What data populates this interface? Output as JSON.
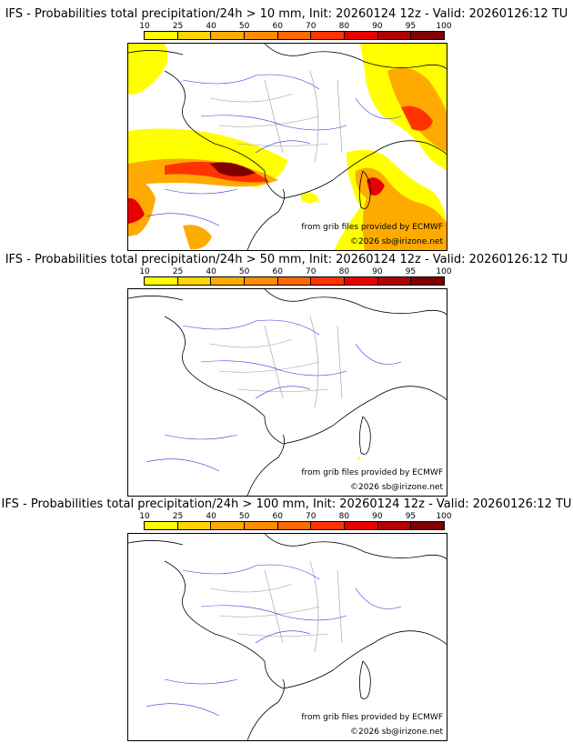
{
  "colorbar": {
    "labels": [
      "10",
      "25",
      "40",
      "50",
      "60",
      "70",
      "80",
      "90",
      "95",
      "100"
    ],
    "colors": [
      "#ffff00",
      "#ffd400",
      "#ffaa00",
      "#ff8c00",
      "#ff6a00",
      "#ff3300",
      "#e60000",
      "#b30000",
      "#800000",
      "#4d0000"
    ]
  },
  "panels": [
    {
      "title": "IFS - Probabilities total precipitation/24h > 10 mm, Init: 20260124 12z - Valid: 20260126:12 TU",
      "source": "from grib files provided by ECMWF",
      "copyright": "©2026 sb@irizone.net"
    },
    {
      "title": "IFS - Probabilities total precipitation/24h > 50 mm, Init: 20260124 12z - Valid: 20260126:12 TU",
      "source": "from grib files provided by ECMWF",
      "copyright": "©2026 sb@irizone.net"
    },
    {
      "title": "IFS - Probabilities total precipitation/24h > 100 mm, Init: 20260124 12z - Valid: 20260126:12 TU",
      "source": "from grib files provided by ECMWF",
      "copyright": "©2026 sb@irizone.net"
    }
  ]
}
